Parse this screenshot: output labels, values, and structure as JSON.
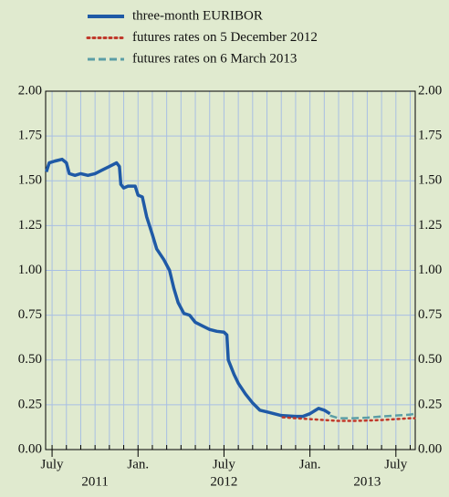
{
  "chart_data": {
    "type": "line",
    "series": [
      {
        "name": "three-month EURIBOR",
        "color": "#1f5aa6",
        "style": "solid",
        "x": [
          -0.4,
          -0.2,
          0.2,
          0.7,
          1.0,
          1.2,
          1.6,
          2.0,
          2.5,
          3.0,
          3.5,
          4.0,
          4.5,
          4.7,
          4.8,
          5.0,
          5.3,
          5.8,
          6.0,
          6.3,
          6.6,
          7.0,
          7.3,
          7.8,
          8.2,
          8.5,
          8.8,
          9.2,
          9.6,
          10.0,
          10.5,
          11.0,
          11.5,
          12.0,
          12.2,
          12.3,
          12.7,
          13.0,
          13.5,
          14.0,
          14.5,
          15.0,
          15.5,
          16.0,
          17.0,
          17.5,
          18.0,
          18.4,
          18.6,
          19.0,
          19.4
        ],
        "values": [
          1.55,
          1.6,
          1.61,
          1.62,
          1.6,
          1.54,
          1.53,
          1.54,
          1.53,
          1.54,
          1.56,
          1.58,
          1.6,
          1.58,
          1.48,
          1.46,
          1.47,
          1.47,
          1.42,
          1.41,
          1.3,
          1.2,
          1.12,
          1.06,
          1.0,
          0.9,
          0.82,
          0.76,
          0.75,
          0.71,
          0.69,
          0.67,
          0.66,
          0.655,
          0.64,
          0.5,
          0.42,
          0.37,
          0.31,
          0.26,
          0.22,
          0.21,
          0.2,
          0.19,
          0.185,
          0.185,
          0.2,
          0.22,
          0.23,
          0.22,
          0.2
        ]
      },
      {
        "name": "futures rates on 5 December 2012",
        "color": "#c0392b",
        "style": "dotted",
        "x": [
          16.1,
          17,
          18,
          19,
          20,
          21,
          22,
          23,
          24,
          25,
          25.3
        ],
        "values": [
          0.18,
          0.175,
          0.17,
          0.165,
          0.16,
          0.16,
          0.162,
          0.165,
          0.17,
          0.175,
          0.175
        ]
      },
      {
        "name": "futures rates on 6 March 2013",
        "color": "#5b9ea6",
        "style": "dashed",
        "x": [
          19.4,
          20,
          21,
          22,
          23,
          24,
          25,
          25.3
        ],
        "values": [
          0.19,
          0.175,
          0.175,
          0.178,
          0.185,
          0.19,
          0.195,
          0.2
        ]
      }
    ],
    "xlim": [
      -0.45,
      25.35
    ],
    "xticks": [
      {
        "value": 0,
        "label": "July"
      },
      {
        "value": 6,
        "label": "Jan."
      },
      {
        "value": 12,
        "label": "July"
      },
      {
        "value": 18,
        "label": "Jan."
      },
      {
        "value": 24,
        "label": "July"
      }
    ],
    "xgrid": [
      0,
      1,
      2,
      3,
      4,
      5,
      6,
      7,
      8,
      9,
      10,
      11,
      12,
      13,
      14,
      15,
      16,
      17,
      18,
      19,
      20,
      21,
      22,
      23,
      24,
      25
    ],
    "x_group_labels": [
      {
        "value": 3,
        "label": "2011"
      },
      {
        "value": 12,
        "label": "2012"
      },
      {
        "value": 22,
        "label": "2013"
      }
    ],
    "ylim": [
      0,
      2
    ],
    "yticks": [
      {
        "value": 0,
        "label": "0.00"
      },
      {
        "value": 0.25,
        "label": "0.25"
      },
      {
        "value": 0.5,
        "label": "0.50"
      },
      {
        "value": 0.75,
        "label": "0.75"
      },
      {
        "value": 1,
        "label": "1.00"
      },
      {
        "value": 1.25,
        "label": "1.25"
      },
      {
        "value": 1.5,
        "label": "1.50"
      },
      {
        "value": 1.75,
        "label": "1.75"
      },
      {
        "value": 2,
        "label": "2.00"
      }
    ],
    "grid": true
  }
}
